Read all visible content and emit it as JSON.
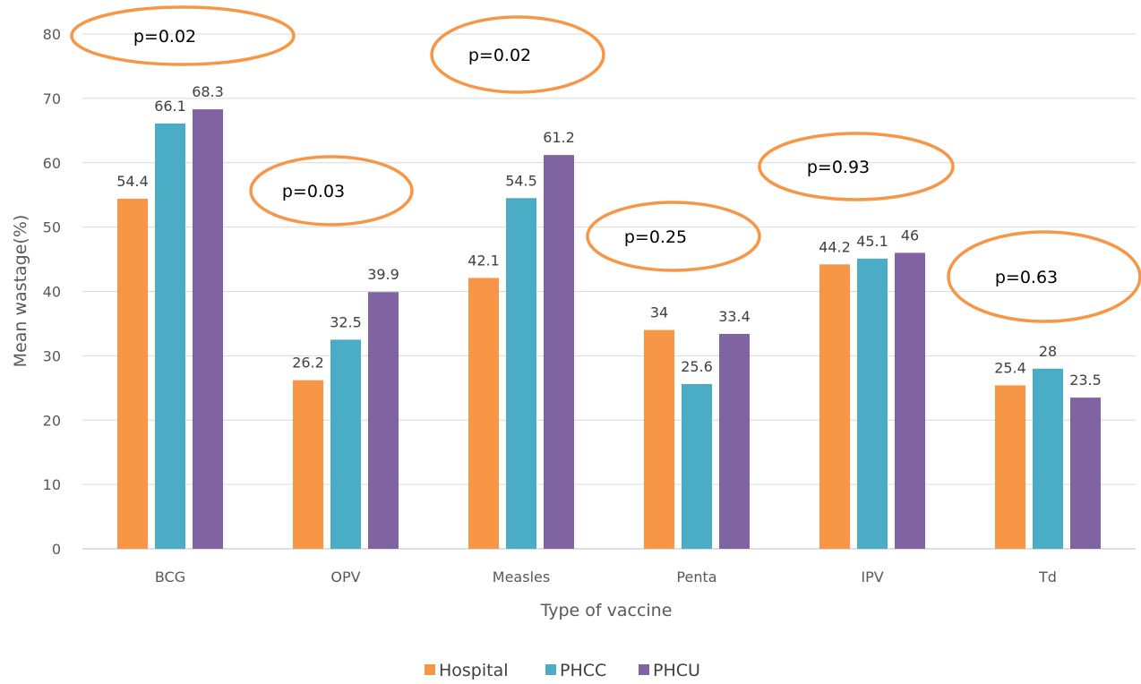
{
  "chart_data": {
    "type": "bar",
    "title": "",
    "xlabel": "Type of vaccine",
    "ylabel": "Mean wastage(%)",
    "ylim": [
      0,
      80
    ],
    "yticks": [
      0,
      10,
      20,
      30,
      40,
      50,
      60,
      70,
      80
    ],
    "grid": true,
    "legend_position": "bottom",
    "categories": [
      "BCG",
      "OPV",
      "Measles",
      "Penta",
      "IPV",
      "Td"
    ],
    "series": [
      {
        "name": "Hospital",
        "color": "#F79646",
        "values": [
          54.4,
          26.2,
          42.1,
          34,
          44.2,
          25.4
        ]
      },
      {
        "name": "PHCC",
        "color": "#4BACC6",
        "values": [
          66.1,
          32.5,
          54.5,
          25.6,
          45.1,
          28
        ]
      },
      {
        "name": "PHCU",
        "color": "#8064A2",
        "values": [
          68.3,
          39.9,
          61.2,
          33.4,
          46,
          23.5
        ]
      }
    ],
    "annotations": [
      {
        "text": "p=0.02",
        "category": "BCG"
      },
      {
        "text": "p=0.03",
        "category": "OPV"
      },
      {
        "text": "p=0.02",
        "category": "Measles"
      },
      {
        "text": "p=0.25",
        "category": "Penta"
      },
      {
        "text": "p=0.93",
        "category": "IPV"
      },
      {
        "text": "p=0.63",
        "category": "Td"
      }
    ],
    "annotation_color": "#F79646"
  }
}
